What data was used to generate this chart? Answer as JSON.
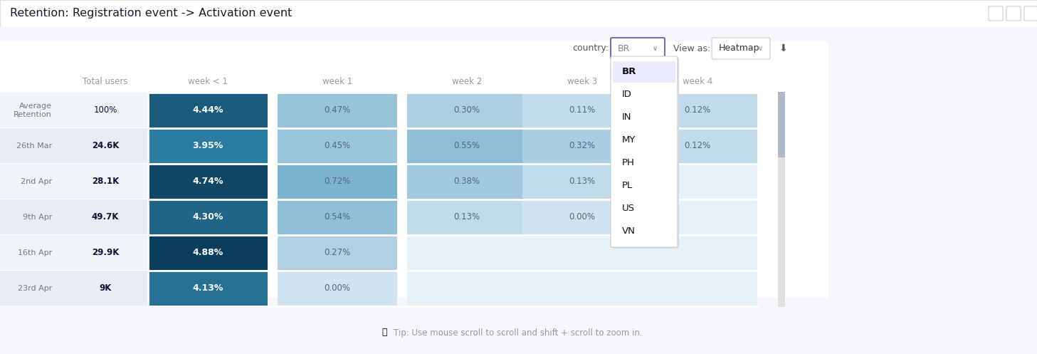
{
  "title": "Retention: Registration event -> Activation event",
  "rows": [
    "Average\nRetention",
    "26th Mar",
    "2nd Apr",
    "9th Apr",
    "16th Apr",
    "23rd Apr"
  ],
  "total_users": [
    "100%",
    "24.6K",
    "28.1K",
    "49.7K",
    "29.9K",
    "9K"
  ],
  "col_headers": [
    "Total users",
    "week < 1",
    "week 1",
    "week 2",
    "week 3",
    "week 4"
  ],
  "heatmap_values": [
    [
      "4.44%",
      "0.47%",
      "0.30%",
      "0.11%",
      "0.12%"
    ],
    [
      "3.95%",
      "0.45%",
      "0.55%",
      "0.32%",
      "0.12%"
    ],
    [
      "4.74%",
      "0.72%",
      "0.38%",
      "0.13%",
      null
    ],
    [
      "4.30%",
      "0.54%",
      "0.13%",
      "0.00%",
      null
    ],
    [
      "4.88%",
      "0.27%",
      null,
      null,
      null
    ],
    [
      "4.13%",
      "0.00%",
      null,
      null,
      null
    ]
  ],
  "numeric_values": [
    [
      4.44,
      0.47,
      0.3,
      0.11,
      0.12
    ],
    [
      3.95,
      0.45,
      0.55,
      0.32,
      0.12
    ],
    [
      4.74,
      0.72,
      0.38,
      0.13,
      null
    ],
    [
      4.3,
      0.54,
      0.13,
      0.0,
      null
    ],
    [
      4.88,
      0.27,
      null,
      null,
      null
    ],
    [
      4.13,
      0.0,
      null,
      null,
      null
    ]
  ],
  "navy_dark": "#0d4b6b",
  "navy_mid": "#1a6b8a",
  "blue_high": "#8bbdd4",
  "blue_low": "#c8dff0",
  "blue_empty": "#dde8f5",
  "blue_very_light": "#e8f0f8",
  "row_bg_even": "#f2f5fa",
  "row_bg_odd": "#eaeff7",
  "header_text": "#999999",
  "row_label_color": "#777777",
  "total_bold_color": "#111133",
  "white": "#ffffff",
  "border_color": "#e0e0e0",
  "dropdown_items": [
    "BR",
    "ID",
    "IN",
    "MY",
    "PH",
    "PL",
    "US",
    "VN"
  ],
  "dropdown_selected": "BR",
  "view_as": "Heatmap",
  "tip_text": "Tip: Use mouse scroll to scroll and shift + scroll to zoom in.",
  "country_label": "country:",
  "view_as_label": "View as:"
}
